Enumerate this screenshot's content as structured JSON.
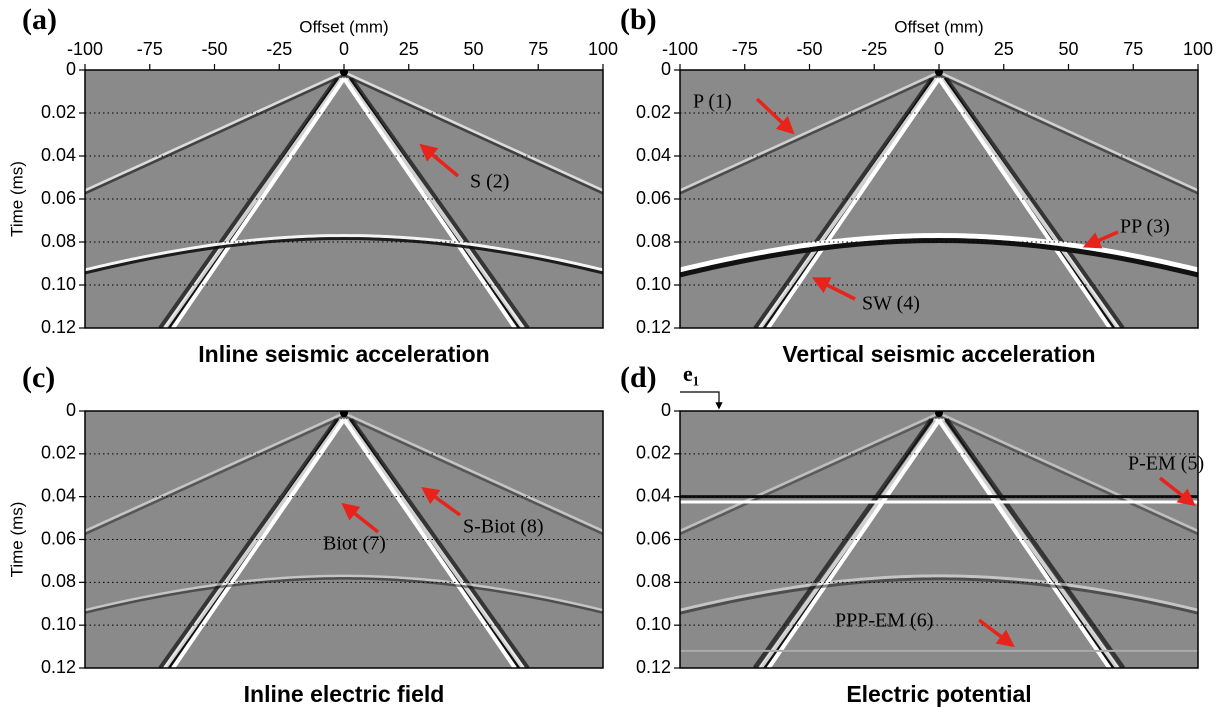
{
  "chart_data": [
    {
      "type": "image",
      "panel_label": "(a)",
      "title": "Inline seismic acceleration",
      "xlabel": "Offset (mm)",
      "ylabel": "Time (ms)",
      "xlim": [
        -100,
        100
      ],
      "xticks": [
        -100,
        -75,
        -50,
        -25,
        0,
        25,
        50,
        75,
        100
      ],
      "ylim": [
        0,
        0.12
      ],
      "yticks": [
        0,
        0.02,
        0.04,
        0.06,
        0.08,
        {
          "value": 0.1,
          "label": "0.10"
        },
        0.12
      ],
      "grid": true,
      "annotations": [
        "S (2)"
      ]
    },
    {
      "type": "image",
      "panel_label": "(b)",
      "title": "Vertical seismic acceleration",
      "xlabel": "Offset (mm)",
      "xlim": [
        -100,
        100
      ],
      "xticks": [
        -100,
        -75,
        -50,
        -25,
        0,
        25,
        50,
        75,
        100
      ],
      "ylim": [
        0,
        0.12
      ],
      "yticks": [
        0,
        0.02,
        0.04,
        0.06,
        0.08,
        {
          "value": 0.1,
          "label": "0.10"
        },
        0.12
      ],
      "grid": true,
      "annotations": [
        "P (1)",
        "PP (3)",
        "SW (4)"
      ]
    },
    {
      "type": "image",
      "panel_label": "(c)",
      "title": "Inline electric field",
      "ylabel": "Time (ms)",
      "xlim": [
        -100,
        100
      ],
      "ylim": [
        0,
        0.12
      ],
      "yticks": [
        0,
        0.02,
        0.04,
        0.06,
        0.08,
        {
          "value": 0.1,
          "label": "0.10"
        },
        0.12
      ],
      "grid": true,
      "annotations": [
        "Biot (7)",
        "S-Biot (8)"
      ]
    },
    {
      "type": "image",
      "panel_label": "(d)",
      "title": "Electric potential",
      "xlim": [
        -100,
        100
      ],
      "ylim": [
        0,
        0.12
      ],
      "yticks": [
        0,
        0.02,
        0.04,
        0.06,
        0.08,
        {
          "value": 0.1,
          "label": "0.10"
        },
        0.12
      ],
      "grid": true,
      "annotations": [
        "e₁",
        "P-EM (5)",
        "PPP-EM (6)"
      ]
    }
  ]
}
